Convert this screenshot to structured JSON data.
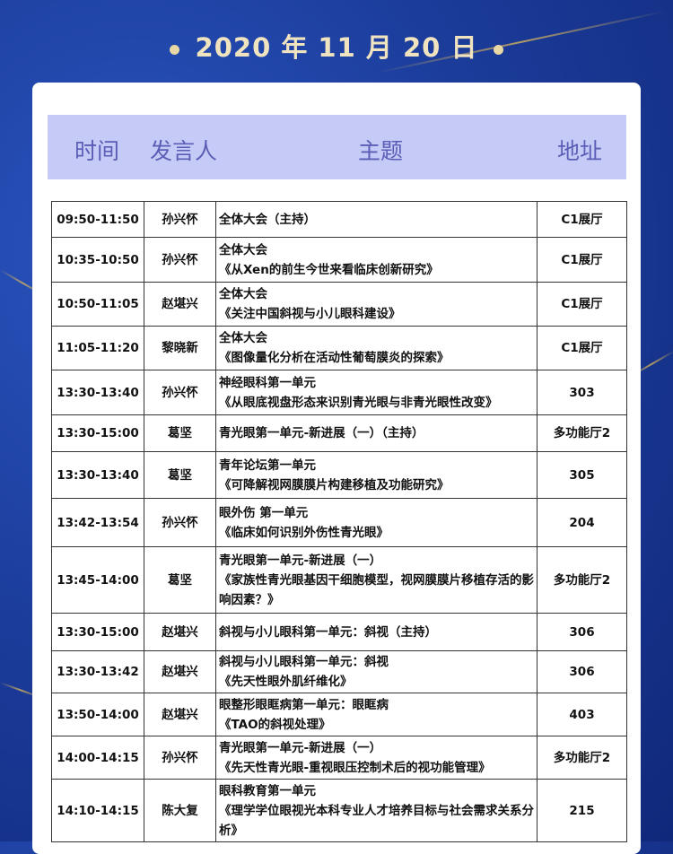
{
  "title": "2020 年 11 月 20 日",
  "header": {
    "time": "时间",
    "speaker": "发言人",
    "topic": "主题",
    "location": "地址"
  },
  "rows": [
    {
      "time": "09:50-11:50",
      "speaker": "孙兴怀",
      "topic": [
        "全体大会（主持）"
      ],
      "location": "C1展厅"
    },
    {
      "time": "10:35-10:50",
      "speaker": "孙兴怀",
      "topic": [
        "全体大会",
        "《从Xen的前生今世来看临床创新研究》"
      ],
      "location": "C1展厅"
    },
    {
      "time": "10:50-11:05",
      "speaker": "赵堪兴",
      "topic": [
        "全体大会",
        "《关注中国斜视与小儿眼科建设》"
      ],
      "location": "C1展厅"
    },
    {
      "time": "11:05-11:20",
      "speaker": "黎晓新",
      "topic": [
        "全体大会",
        "《图像量化分析在活动性葡萄膜炎的探索》"
      ],
      "location": "C1展厅"
    },
    {
      "time": "13:30-13:40",
      "speaker": "孙兴怀",
      "topic": [
        "神经眼科第一单元",
        "《从眼底视盘形态来识别青光眼与非青光眼性改变》"
      ],
      "location": "303"
    },
    {
      "time": "13:30-15:00",
      "speaker": "葛坚",
      "topic": [
        "青光眼第一单元-新进展（一）（主持）"
      ],
      "location": "多功能厅2"
    },
    {
      "time": "13:30-13:40",
      "speaker": "葛坚",
      "topic": [
        "青年论坛第一单元",
        "《可降解视网膜膜片构建移植及功能研究》"
      ],
      "location": "305"
    },
    {
      "time": "13:42-13:54",
      "speaker": "孙兴怀",
      "topic": [
        "眼外伤 第一单元",
        "《临床如何识别外伤性青光眼》"
      ],
      "location": "204"
    },
    {
      "time": "13:45-14:00",
      "speaker": "葛坚",
      "topic": [
        "青光眼第一单元-新进展（一）",
        "《家族性青光眼基因干细胞模型，视网膜膜片移植存活的影响因素？》"
      ],
      "location": "多功能厅2"
    },
    {
      "time": "13:30-15:00",
      "speaker": "赵堪兴",
      "topic": [
        "斜视与小儿眼科第一单元：斜视（主持）"
      ],
      "location": "306"
    },
    {
      "time": "13:30-13:42",
      "speaker": "赵堪兴",
      "topic": [
        "斜视与小儿眼科第一单元：斜视",
        "《先天性眼外肌纤维化》"
      ],
      "location": "306"
    },
    {
      "time": "13:50-14:00",
      "speaker": "赵堪兴",
      "topic": [
        "眼整形眼眶病第一单元：眼眶病",
        "《TAO的斜视处理》"
      ],
      "location": "403"
    },
    {
      "time": "14:00-14:15",
      "speaker": "孙兴怀",
      "topic": [
        "青光眼第一单元-新进展（一）",
        "《先天性青光眼-重视眼压控制术后的视功能管理》"
      ],
      "location": "多功能厅2"
    },
    {
      "time": "14:10-14:15",
      "speaker": "陈大复",
      "topic": [
        "眼科教育第一单元",
        "《理学学位眼视光本科专业人才培养目标与社会需求关系分析》"
      ],
      "location": "215"
    }
  ]
}
